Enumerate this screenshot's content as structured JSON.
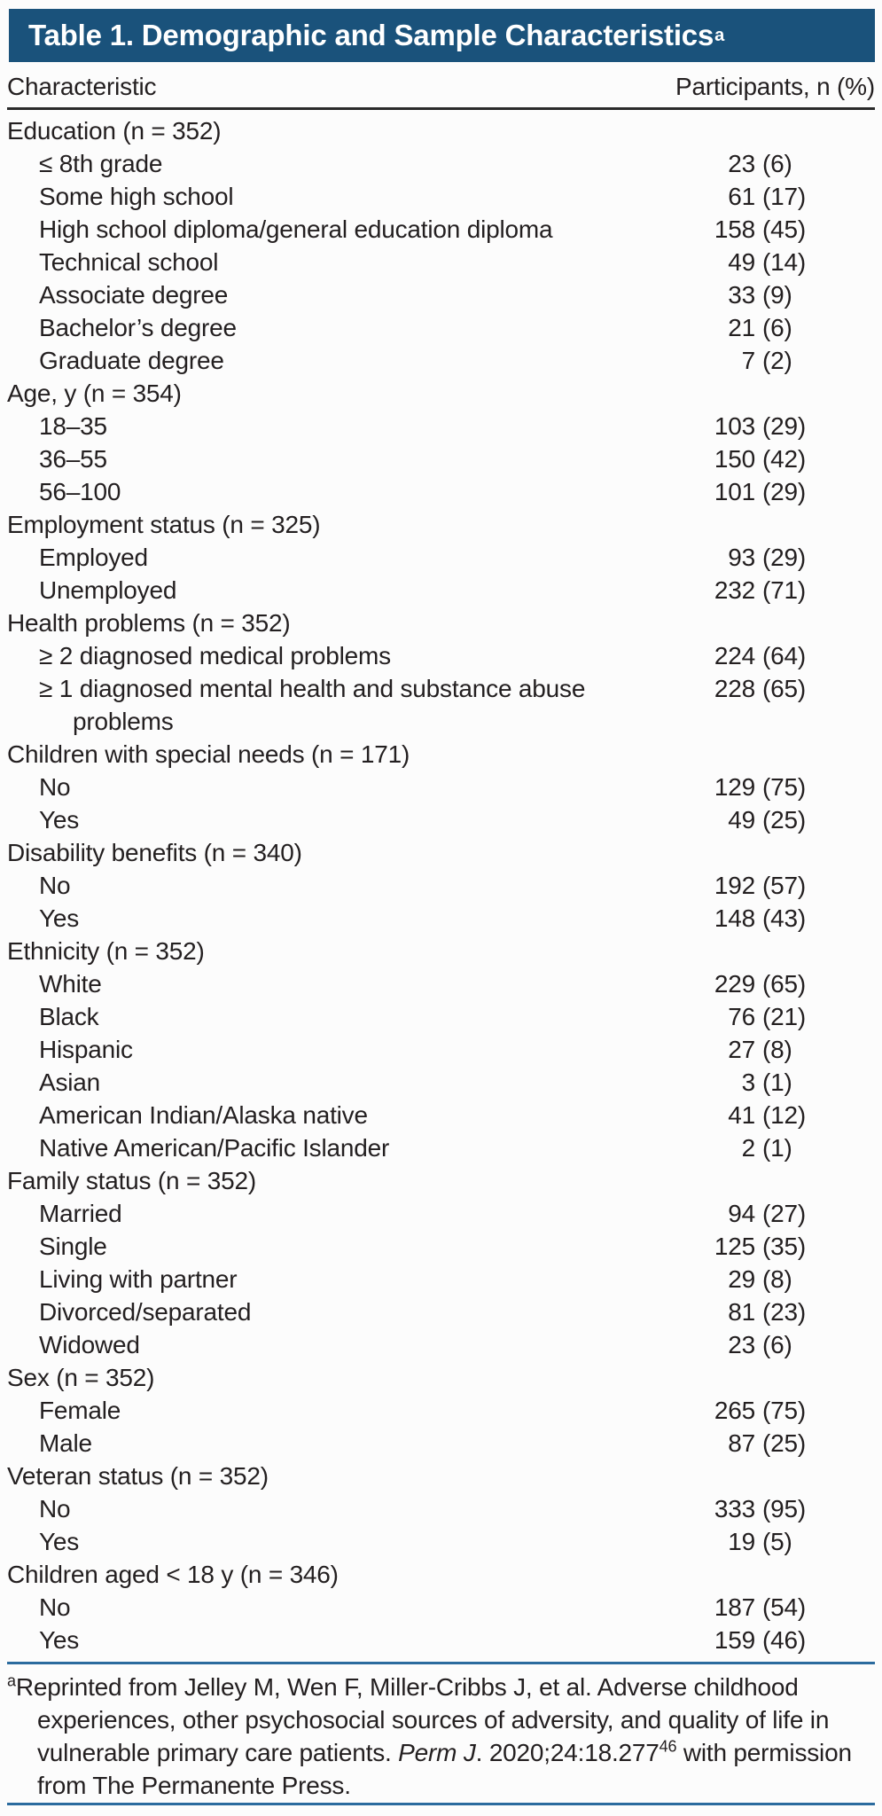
{
  "theme": {
    "bg": "#fcfcfc",
    "text": "#231f20",
    "bar": "#1a527b",
    "rule_dark": "#2a2a2a",
    "rule_blue": "#2b6b9e"
  },
  "title": {
    "text": "Table 1. Demographic and Sample Characteristics",
    "sup": "a"
  },
  "columns": {
    "characteristic": "Characteristic",
    "participants": "Participants, n (%)"
  },
  "table": {
    "rows": [
      {
        "type": "group",
        "label": "Education (n = 352)"
      },
      {
        "type": "item",
        "label": "≤ 8th grade",
        "num": "23",
        "pct": "(6)"
      },
      {
        "type": "item",
        "label": "Some high school",
        "num": "61",
        "pct": "(17)"
      },
      {
        "type": "item",
        "label": "High school diploma/general education diploma",
        "num": "158",
        "pct": "(45)"
      },
      {
        "type": "item",
        "label": "Technical school",
        "num": "49",
        "pct": "(14)"
      },
      {
        "type": "item",
        "label": "Associate degree",
        "num": "33",
        "pct": "(9)"
      },
      {
        "type": "item",
        "label": "Bachelor’s degree",
        "num": "21",
        "pct": "(6)"
      },
      {
        "type": "item",
        "label": "Graduate degree",
        "num": "7",
        "pct": "(2)"
      },
      {
        "type": "group",
        "label": "Age, y (n = 354)"
      },
      {
        "type": "item",
        "label": "18–35",
        "num": "103",
        "pct": "(29)"
      },
      {
        "type": "item",
        "label": "36–55",
        "num": "150",
        "pct": "(42)"
      },
      {
        "type": "item",
        "label": "56–100",
        "num": "101",
        "pct": "(29)"
      },
      {
        "type": "group",
        "label": "Employment status (n = 325)"
      },
      {
        "type": "item",
        "label": "Employed",
        "num": "93",
        "pct": "(29)"
      },
      {
        "type": "item",
        "label": "Unemployed",
        "num": "232",
        "pct": "(71)"
      },
      {
        "type": "group",
        "label": "Health problems (n = 352)"
      },
      {
        "type": "item",
        "label": "≥ 2 diagnosed medical problems",
        "num": "224",
        "pct": "(64)"
      },
      {
        "type": "item",
        "label": "≥ 1 diagnosed mental health and substance abuse",
        "label_wrap": "problems",
        "num": "228",
        "pct": "(65)"
      },
      {
        "type": "group",
        "label": "Children with special needs (n = 171)"
      },
      {
        "type": "item",
        "label": "No",
        "num": "129",
        "pct": "(75)"
      },
      {
        "type": "item",
        "label": "Yes",
        "num": "49",
        "pct": "(25)"
      },
      {
        "type": "group",
        "label": "Disability benefits (n = 340)"
      },
      {
        "type": "item",
        "label": "No",
        "num": "192",
        "pct": "(57)"
      },
      {
        "type": "item",
        "label": "Yes",
        "num": "148",
        "pct": "(43)"
      },
      {
        "type": "group",
        "label": "Ethnicity (n = 352)"
      },
      {
        "type": "item",
        "label": "White",
        "num": "229",
        "pct": "(65)"
      },
      {
        "type": "item",
        "label": "Black",
        "num": "76",
        "pct": "(21)"
      },
      {
        "type": "item",
        "label": "Hispanic",
        "num": "27",
        "pct": "(8)"
      },
      {
        "type": "item",
        "label": "Asian",
        "num": "3",
        "pct": "(1)"
      },
      {
        "type": "item",
        "label": "American Indian/Alaska native",
        "num": "41",
        "pct": "(12)"
      },
      {
        "type": "item",
        "label": "Native American/Pacific Islander",
        "num": "2",
        "pct": "(1)"
      },
      {
        "type": "group",
        "label": "Family status (n = 352)"
      },
      {
        "type": "item",
        "label": "Married",
        "num": "94",
        "pct": "(27)"
      },
      {
        "type": "item",
        "label": "Single",
        "num": "125",
        "pct": "(35)"
      },
      {
        "type": "item",
        "label": "Living with partner",
        "num": "29",
        "pct": "(8)"
      },
      {
        "type": "item",
        "label": "Divorced/separated",
        "num": "81",
        "pct": "(23)"
      },
      {
        "type": "item",
        "label": "Widowed",
        "num": "23",
        "pct": "(6)"
      },
      {
        "type": "group",
        "label": "Sex (n = 352)"
      },
      {
        "type": "item",
        "label": "Female",
        "num": "265",
        "pct": "(75)"
      },
      {
        "type": "item",
        "label": "Male",
        "num": "87",
        "pct": "(25)"
      },
      {
        "type": "group",
        "label": "Veteran status (n = 352)"
      },
      {
        "type": "item",
        "label": "No",
        "num": "333",
        "pct": "(95)"
      },
      {
        "type": "item",
        "label": "Yes",
        "num": "19",
        "pct": "(5)"
      },
      {
        "type": "group",
        "label": "Children aged < 18 y (n = 346)"
      },
      {
        "type": "item",
        "label": "No",
        "num": "187",
        "pct": "(54)"
      },
      {
        "type": "item",
        "label": "Yes",
        "num": "159",
        "pct": "(46)"
      }
    ]
  },
  "footnote": {
    "segments": [
      {
        "style": "sup",
        "text": "a"
      },
      {
        "style": "plain",
        "text": "Reprinted from Jelley M, Wen F, Miller-Cribbs J, et al. Adverse childhood experiences, other psychosocial sources of adversity, and quality of life in vulnerable primary care patients. "
      },
      {
        "style": "italic",
        "text": "Perm J"
      },
      {
        "style": "plain",
        "text": ". 2020;24:18.277"
      },
      {
        "style": "sup",
        "text": "46"
      },
      {
        "style": "plain",
        "text": " with permission from The Permanente Press."
      }
    ]
  }
}
